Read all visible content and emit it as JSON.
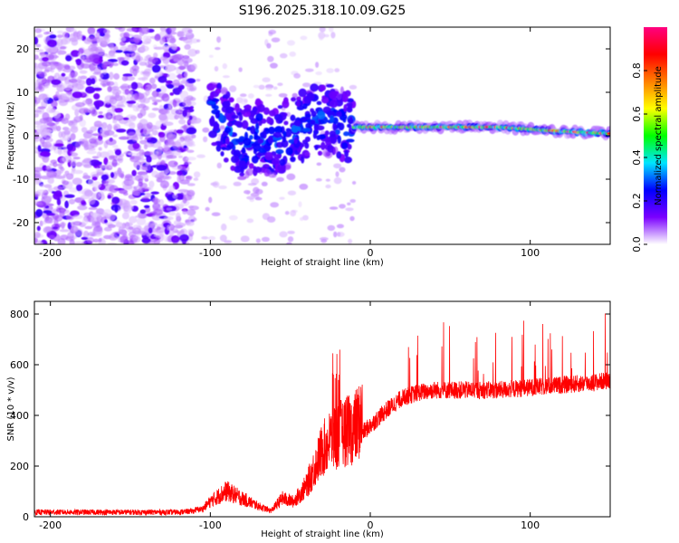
{
  "title": "S196.2025.318.10.09.G25",
  "chart_data": [
    {
      "type": "heatmap",
      "name": "spectrogram",
      "xlabel": "Height of straight line (km)",
      "ylabel": "Frequency (Hz)",
      "xlim": [
        -210,
        150
      ],
      "ylim": [
        -25,
        25
      ],
      "xticks": [
        -200,
        -100,
        0,
        100
      ],
      "yticks": [
        -20,
        -10,
        0,
        10,
        20
      ],
      "colorbar": {
        "label": "Normalized spectral amplitude",
        "range": [
          0,
          1
        ],
        "ticks": [
          0.0,
          0.2,
          0.4,
          0.6,
          0.8
        ],
        "colors": [
          "#ffffff",
          "#7a00ff",
          "#0000ff",
          "#00e5ff",
          "#00ff00",
          "#ffff00",
          "#ff7f00",
          "#ff0000",
          "#ff0080"
        ]
      },
      "ridge": {
        "x": [
          -100,
          -90,
          -80,
          -70,
          -60,
          -50,
          -40,
          -30,
          -20,
          -10,
          0,
          20,
          40,
          60,
          80,
          100,
          120,
          150
        ],
        "freq": [
          6,
          2,
          -2,
          0,
          -2,
          1,
          3,
          4,
          3,
          2,
          2,
          2,
          2,
          2,
          2,
          1.5,
          1,
          0.5
        ]
      }
    },
    {
      "type": "line",
      "name": "snr",
      "xlabel": "Height of straight line (km)",
      "ylabel": "SNR (10 * v/v)",
      "xlim": [
        -210,
        150
      ],
      "ylim": [
        0,
        850
      ],
      "xticks": [
        -200,
        -100,
        0,
        100
      ],
      "yticks": [
        0,
        200,
        400,
        600,
        800
      ],
      "color": "#ff0000",
      "profile": {
        "x": [
          -210,
          -120,
          -105,
          -100,
          -90,
          -80,
          -70,
          -62,
          -55,
          -48,
          -40,
          -30,
          -25,
          -20,
          -15,
          -10,
          -5,
          0,
          10,
          20,
          30,
          40,
          60,
          80,
          100,
          120,
          140,
          150
        ],
        "y": [
          18,
          18,
          25,
          50,
          85,
          60,
          35,
          20,
          60,
          50,
          100,
          220,
          250,
          270,
          280,
          290,
          330,
          360,
          420,
          470,
          490,
          500,
          500,
          500,
          510,
          520,
          530,
          540
        ]
      }
    }
  ]
}
